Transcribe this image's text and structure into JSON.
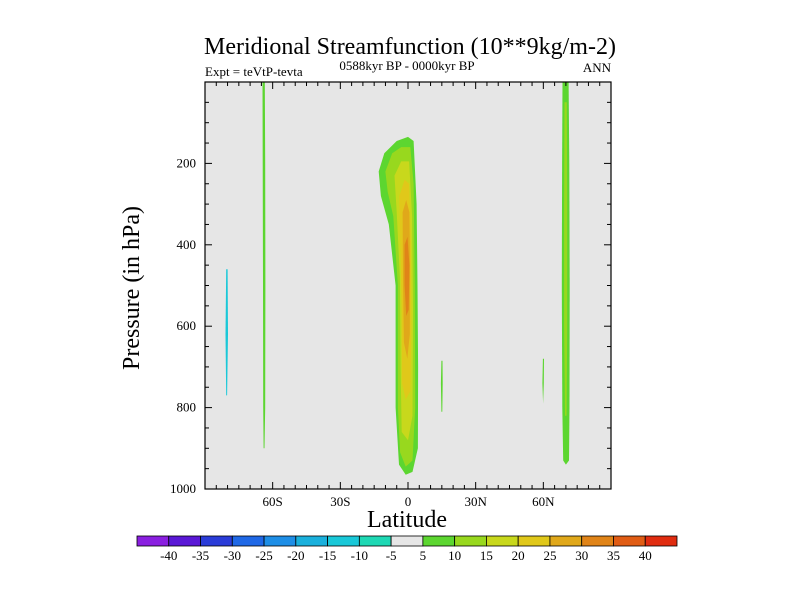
{
  "chart_data": {
    "type": "contour",
    "title": "Meridional Streamfunction (10**9kg/m-2)",
    "left_label": "Expt = teVtP-tevta",
    "center_label": "0588kyr BP - 0000kyr BP",
    "right_label": "ANN",
    "xlabel": "Latitude",
    "ylabel": "Pressure (in hPa)",
    "xlim": [
      -90,
      90
    ],
    "ylim": [
      1000,
      0
    ],
    "x_ticks": [
      {
        "value": -60,
        "label": "60S"
      },
      {
        "value": -30,
        "label": "30S"
      },
      {
        "value": 0,
        "label": "0"
      },
      {
        "value": 30,
        "label": "30N"
      },
      {
        "value": 60,
        "label": "60N"
      }
    ],
    "y_ticks": [
      {
        "value": 200,
        "label": "200"
      },
      {
        "value": 400,
        "label": "400"
      },
      {
        "value": 600,
        "label": "600"
      },
      {
        "value": 800,
        "label": "800"
      },
      {
        "value": 1000,
        "label": "1000"
      }
    ],
    "levels": [
      -40,
      -35,
      -30,
      -25,
      -20,
      -15,
      -10,
      -5,
      5,
      10,
      15,
      20,
      25,
      30,
      35,
      40
    ],
    "level_labels": [
      "-40",
      "-35",
      "-30",
      "-25",
      "-20",
      "-15",
      "-10",
      "-5",
      "5",
      "10",
      "15",
      "20",
      "25",
      "30",
      "35",
      "40"
    ],
    "colors": [
      "#8a1fe0",
      "#5a18d6",
      "#2a3cd8",
      "#1f68e6",
      "#1e8ee6",
      "#1ab0dc",
      "#19c8d8",
      "#1ed8b4",
      "#e6e6e6",
      "#5cd630",
      "#98d81e",
      "#c8d81c",
      "#e0c81a",
      "#e0a81a",
      "#e08418",
      "#e05c14",
      "#e02c10"
    ],
    "background_color": "#e6e6e6",
    "regions": [
      {
        "name": "60S-positive-band",
        "value_level": 5,
        "polygon": [
          [
            -64.5,
            0
          ],
          [
            -63.5,
            0
          ],
          [
            -63.3,
            200
          ],
          [
            -63.2,
            500
          ],
          [
            -63.3,
            800
          ],
          [
            -63.6,
            900
          ],
          [
            -64.0,
            900
          ],
          [
            -64.2,
            800
          ],
          [
            -64.3,
            500
          ],
          [
            -64.4,
            200
          ]
        ]
      },
      {
        "name": "80S-negative-patch",
        "value_level": -10,
        "polygon": [
          [
            -80.6,
            460
          ],
          [
            -80.0,
            460
          ],
          [
            -79.8,
            620
          ],
          [
            -80.2,
            770
          ],
          [
            -80.6,
            770
          ],
          [
            -80.9,
            620
          ]
        ]
      },
      {
        "name": "tropical-cell-outer",
        "value_level": 5,
        "polygon": [
          [
            -13,
            220
          ],
          [
            -10.5,
            175
          ],
          [
            -5,
            145
          ],
          [
            0,
            135
          ],
          [
            2.5,
            145
          ],
          [
            3.8,
            300
          ],
          [
            4.2,
            500
          ],
          [
            4.5,
            700
          ],
          [
            4.4,
            900
          ],
          [
            2,
            958
          ],
          [
            -1,
            965
          ],
          [
            -4,
            940
          ],
          [
            -5.5,
            800
          ],
          [
            -5.5,
            500
          ],
          [
            -8.5,
            350
          ],
          [
            -12,
            280
          ]
        ]
      },
      {
        "name": "tropical-cell-10",
        "value_level": 10,
        "polygon": [
          [
            -10,
            220
          ],
          [
            -7,
            175
          ],
          [
            -3,
            160
          ],
          [
            1,
            160
          ],
          [
            2.5,
            250
          ],
          [
            3,
            500
          ],
          [
            3.2,
            800
          ],
          [
            2,
            930
          ],
          [
            -1,
            945
          ],
          [
            -3.5,
            910
          ],
          [
            -4.5,
            800
          ],
          [
            -4.5,
            500
          ],
          [
            -6.5,
            330
          ],
          [
            -9,
            270
          ]
        ]
      },
      {
        "name": "tropical-cell-15",
        "value_level": 15,
        "polygon": [
          [
            -6,
            230
          ],
          [
            -3,
            195
          ],
          [
            0.5,
            195
          ],
          [
            1.8,
            330
          ],
          [
            2.2,
            560
          ],
          [
            2,
            820
          ],
          [
            0,
            880
          ],
          [
            -2.8,
            860
          ],
          [
            -3.3,
            700
          ],
          [
            -3.6,
            480
          ],
          [
            -5,
            320
          ]
        ]
      },
      {
        "name": "tropical-cell-20",
        "value_level": 20,
        "polygon": [
          [
            -3.8,
            280
          ],
          [
            -1.5,
            240
          ],
          [
            0.5,
            250
          ],
          [
            1.3,
            400
          ],
          [
            1.5,
            600
          ],
          [
            1,
            760
          ],
          [
            -1,
            780
          ],
          [
            -2.6,
            740
          ],
          [
            -2.8,
            560
          ],
          [
            -3.4,
            400
          ]
        ]
      },
      {
        "name": "tropical-cell-25",
        "value_level": 25,
        "polygon": [
          [
            -2.4,
            320
          ],
          [
            -0.8,
            290
          ],
          [
            0.6,
            320
          ],
          [
            0.9,
            450
          ],
          [
            0.8,
            620
          ],
          [
            -0.3,
            680
          ],
          [
            -1.8,
            640
          ],
          [
            -2.2,
            480
          ]
        ]
      },
      {
        "name": "tropical-cell-30",
        "value_level": 30,
        "polygon": [
          [
            -1.5,
            400
          ],
          [
            -0.2,
            380
          ],
          [
            0.6,
            450
          ],
          [
            0.3,
            560
          ],
          [
            -0.8,
            575
          ],
          [
            -1.5,
            500
          ]
        ]
      },
      {
        "name": "15N-positive-sliver",
        "value_level": 5,
        "polygon": [
          [
            14.8,
            685
          ],
          [
            15.3,
            685
          ],
          [
            15.4,
            740
          ],
          [
            15.2,
            810
          ],
          [
            14.8,
            810
          ],
          [
            14.6,
            740
          ]
        ]
      },
      {
        "name": "60N-positive-sliver",
        "value_level": 5,
        "polygon": [
          [
            59.8,
            680
          ],
          [
            60.3,
            680
          ],
          [
            60.2,
            740
          ],
          [
            59.9,
            790
          ],
          [
            59.6,
            740
          ]
        ]
      },
      {
        "name": "70N-positive-band",
        "value_level": 5,
        "polygon": [
          [
            68.5,
            0
          ],
          [
            71.2,
            0
          ],
          [
            71.5,
            200
          ],
          [
            71.7,
            500
          ],
          [
            71.6,
            800
          ],
          [
            71.4,
            930
          ],
          [
            70.0,
            940
          ],
          [
            68.8,
            930
          ],
          [
            68.4,
            800
          ],
          [
            68.2,
            500
          ],
          [
            68.3,
            200
          ]
        ]
      },
      {
        "name": "70N-band-core",
        "value_level": 10,
        "polygon": [
          [
            69.4,
            50
          ],
          [
            70.4,
            50
          ],
          [
            70.6,
            300
          ],
          [
            70.6,
            600
          ],
          [
            70.3,
            820
          ],
          [
            69.6,
            820
          ],
          [
            69.2,
            600
          ],
          [
            69.2,
            300
          ]
        ]
      }
    ]
  }
}
